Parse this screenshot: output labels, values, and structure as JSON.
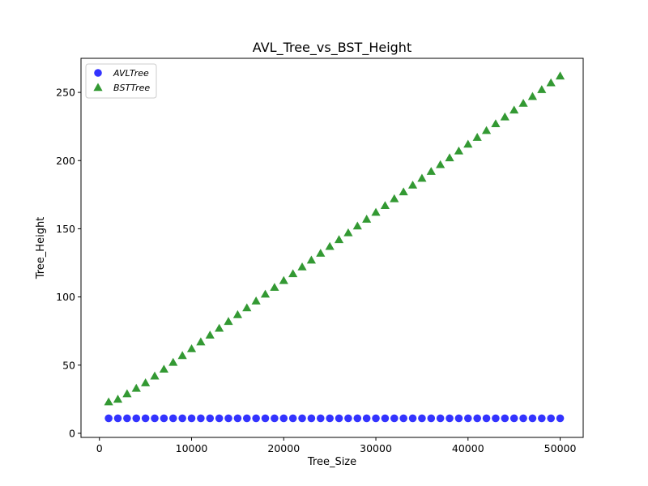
{
  "chart_data": {
    "type": "scatter",
    "title": "AVL_Tree_vs_BST_Height",
    "xlabel": "Tree_Size",
    "ylabel": "Tree_Height",
    "xlim": [
      -2000,
      52500
    ],
    "ylim": [
      -3,
      275
    ],
    "xticks": [
      0,
      10000,
      20000,
      30000,
      40000,
      50000
    ],
    "yticks": [
      0,
      50,
      100,
      150,
      200,
      250
    ],
    "grid": false,
    "legend_position": "top-left",
    "x": [
      1000,
      2000,
      3000,
      4000,
      5000,
      6000,
      7000,
      8000,
      9000,
      10000,
      11000,
      12000,
      13000,
      14000,
      15000,
      16000,
      17000,
      18000,
      19000,
      20000,
      21000,
      22000,
      23000,
      24000,
      25000,
      26000,
      27000,
      28000,
      29000,
      30000,
      31000,
      32000,
      33000,
      34000,
      35000,
      36000,
      37000,
      38000,
      39000,
      40000,
      41000,
      42000,
      43000,
      44000,
      45000,
      46000,
      47000,
      48000,
      49000,
      50000
    ],
    "series": [
      {
        "name": "AVLTree",
        "marker": "circle",
        "color": "#0000ff",
        "values": [
          11,
          11,
          11,
          11,
          11,
          11,
          11,
          11,
          11,
          11,
          11,
          11,
          11,
          11,
          11,
          11,
          11,
          11,
          11,
          11,
          11,
          11,
          11,
          11,
          11,
          11,
          11,
          11,
          11,
          11,
          11,
          11,
          11,
          11,
          11,
          11,
          11,
          11,
          11,
          11,
          11,
          11,
          11,
          11,
          11,
          11,
          11,
          11,
          11,
          11
        ]
      },
      {
        "name": "BSTTree",
        "marker": "triangle",
        "color": "#008000",
        "values": [
          23,
          25,
          29,
          33,
          37,
          42,
          47,
          52,
          57,
          62,
          67,
          72,
          77,
          82,
          87,
          92,
          97,
          102,
          107,
          112,
          117,
          122,
          127,
          132,
          137,
          142,
          147,
          152,
          157,
          162,
          167,
          172,
          177,
          182,
          187,
          192,
          197,
          202,
          207,
          212,
          217,
          222,
          227,
          232,
          237,
          242,
          247,
          252,
          257,
          262
        ]
      }
    ]
  }
}
